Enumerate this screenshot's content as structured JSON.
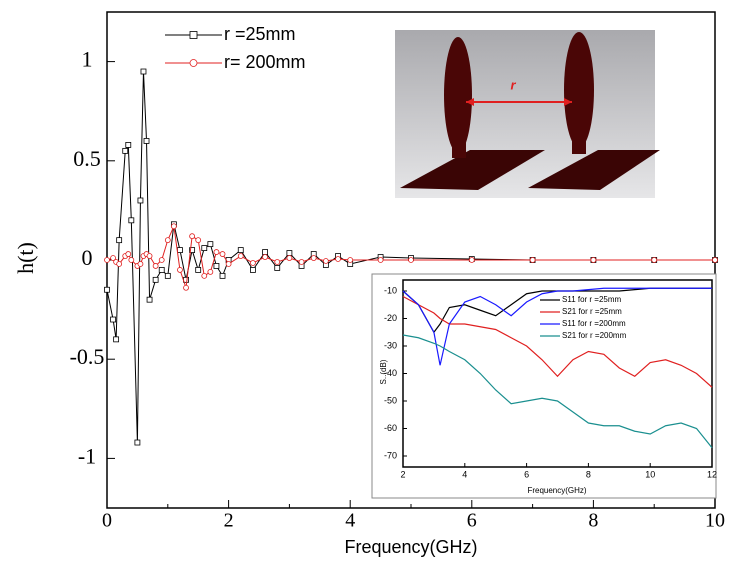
{
  "chart_data": [
    {
      "type": "line",
      "y_label": "h(t)",
      "x_label": "Frequency(GHz)",
      "x": [
        0,
        0.1,
        0.15,
        0.2,
        0.3,
        0.35,
        0.4,
        0.5,
        0.55,
        0.6,
        0.65,
        0.7,
        0.8,
        0.9,
        1.0,
        1.1,
        1.2,
        1.3,
        1.4,
        1.5,
        1.6,
        1.7,
        1.8,
        1.9,
        2.0,
        2.2,
        2.4,
        2.6,
        2.8,
        3.0,
        3.2,
        3.4,
        3.6,
        3.8,
        4.0,
        4.5,
        5,
        6,
        7,
        8,
        9,
        10
      ],
      "series": [
        {
          "name": "r =25mm",
          "color": "#000000",
          "marker": "square",
          "values": [
            -0.15,
            -0.3,
            -0.4,
            0.1,
            0.55,
            0.58,
            0.2,
            -0.92,
            0.3,
            0.95,
            0.6,
            -0.2,
            -0.1,
            -0.05,
            -0.08,
            0.18,
            0.05,
            -0.1,
            0.05,
            -0.05,
            0.06,
            0.08,
            -0.03,
            -0.08,
            0.0,
            0.05,
            -0.05,
            0.04,
            -0.04,
            0.035,
            -0.03,
            0.03,
            -0.025,
            0.02,
            -0.02,
            0.015,
            0.01,
            0.005,
            0,
            0,
            0,
            0
          ]
        },
        {
          "name": "r= 200mm",
          "color": "#e02020",
          "marker": "circle",
          "values": [
            0,
            0.01,
            -0.01,
            -0.02,
            0.02,
            0.03,
            0,
            -0.03,
            -0.02,
            0.02,
            0.03,
            0.02,
            -0.03,
            0,
            0.1,
            0.17,
            -0.05,
            -0.14,
            0.12,
            0.1,
            -0.08,
            -0.06,
            0.04,
            0.03,
            -0.02,
            0.02,
            -0.015,
            0.015,
            -0.01,
            0.01,
            -0.01,
            0.01,
            -0.005,
            0.005,
            0,
            0,
            0,
            0,
            0,
            0,
            0,
            0
          ]
        }
      ],
      "xlim": [
        0,
        10
      ],
      "xticks": [
        0,
        2,
        4,
        6,
        8,
        10
      ],
      "ylim": [
        -1.25,
        1.25
      ],
      "yticks": [
        -1,
        -0.5,
        0,
        0.5,
        1
      ]
    },
    {
      "type": "line",
      "y_label": "S..(dB)",
      "x_label": "Frequency(GHz)",
      "x": [
        2,
        2.5,
        3,
        3.2,
        3.5,
        4,
        4.5,
        5,
        5.5,
        6,
        6.5,
        7,
        7.5,
        8,
        8.5,
        9,
        9.5,
        10,
        10.5,
        11,
        11.5,
        12
      ],
      "series": [
        {
          "name": "S11 for r =25mm",
          "color": "#000000",
          "values": [
            -10,
            -15,
            -25,
            -22,
            -16,
            -15,
            -17,
            -19,
            -15,
            -11,
            -10,
            -10,
            -10,
            -10,
            -10,
            -10,
            -9.5,
            -9,
            -9,
            -9,
            -9,
            -9
          ]
        },
        {
          "name": "S21 for r =25mm",
          "color": "#e02020",
          "values": [
            -12,
            -15,
            -18,
            -20,
            -22,
            -22,
            -23,
            -24,
            -27,
            -30,
            -35,
            -41,
            -35,
            -32,
            -33,
            -38,
            -41,
            -36,
            -35,
            -37,
            -40,
            -45
          ]
        },
        {
          "name": "S11 for r =200mm",
          "color": "#1a1aff",
          "values": [
            -10,
            -15,
            -25,
            -37,
            -22,
            -14,
            -12,
            -15,
            -19,
            -14,
            -11,
            -10,
            -10,
            -9.5,
            -9,
            -9,
            -9,
            -9,
            -9,
            -9,
            -9,
            -9
          ]
        },
        {
          "name": "S21 for r =200mm",
          "color": "#1a8f8f",
          "values": [
            -26,
            -27,
            -29,
            -30,
            -32,
            -35,
            -40,
            -46,
            -51,
            -50,
            -49,
            -50,
            -54,
            -58,
            -59,
            -59,
            -61,
            -62,
            -59,
            -58,
            -60,
            -67
          ]
        }
      ],
      "xlim": [
        2,
        12
      ],
      "xticks": [
        2,
        4,
        6,
        8,
        10,
        12
      ],
      "ylim": [
        -74,
        -6
      ],
      "yticks": [
        -10,
        -20,
        -30,
        -40,
        -50,
        -60,
        -70
      ]
    }
  ],
  "inset_image": {
    "label": "r"
  }
}
